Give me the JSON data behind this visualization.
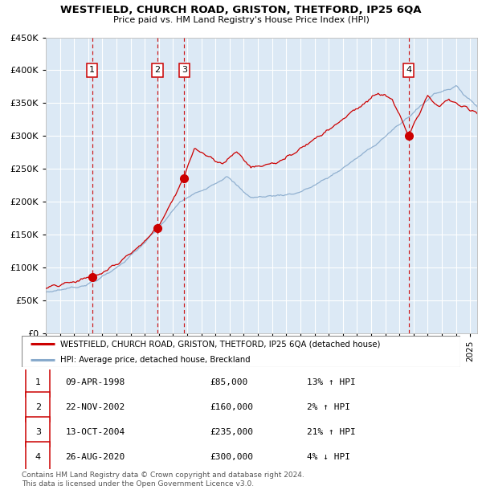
{
  "title": "WESTFIELD, CHURCH ROAD, GRISTON, THETFORD, IP25 6QA",
  "subtitle": "Price paid vs. HM Land Registry's House Price Index (HPI)",
  "background_color": "#dce9f5",
  "grid_color": "#ffffff",
  "red_line_color": "#cc0000",
  "blue_line_color": "#88aacc",
  "sale_marker_color": "#cc0000",
  "dashed_line_color": "#cc0000",
  "ylim": [
    0,
    450000
  ],
  "yticks": [
    0,
    50000,
    100000,
    150000,
    200000,
    250000,
    300000,
    350000,
    400000,
    450000
  ],
  "xlim_start": 1995.0,
  "xlim_end": 2025.5,
  "sales": [
    {
      "label": "1",
      "date_year": 1998.27,
      "price": 85000
    },
    {
      "label": "2",
      "date_year": 2002.89,
      "price": 160000
    },
    {
      "label": "3",
      "date_year": 2004.78,
      "price": 235000
    },
    {
      "label": "4",
      "date_year": 2020.65,
      "price": 300000
    }
  ],
  "legend_entries": [
    "WESTFIELD, CHURCH ROAD, GRISTON, THETFORD, IP25 6QA (detached house)",
    "HPI: Average price, detached house, Breckland"
  ],
  "table_rows": [
    {
      "num": "1",
      "date": "09-APR-1998",
      "price": "£85,000",
      "hpi": "13% ↑ HPI"
    },
    {
      "num": "2",
      "date": "22-NOV-2002",
      "price": "£160,000",
      "hpi": "2% ↑ HPI"
    },
    {
      "num": "3",
      "date": "13-OCT-2004",
      "price": "£235,000",
      "hpi": "21% ↑ HPI"
    },
    {
      "num": "4",
      "date": "26-AUG-2020",
      "price": "£300,000",
      "hpi": "4% ↓ HPI"
    }
  ],
  "footer": "Contains HM Land Registry data © Crown copyright and database right 2024.\nThis data is licensed under the Open Government Licence v3.0."
}
